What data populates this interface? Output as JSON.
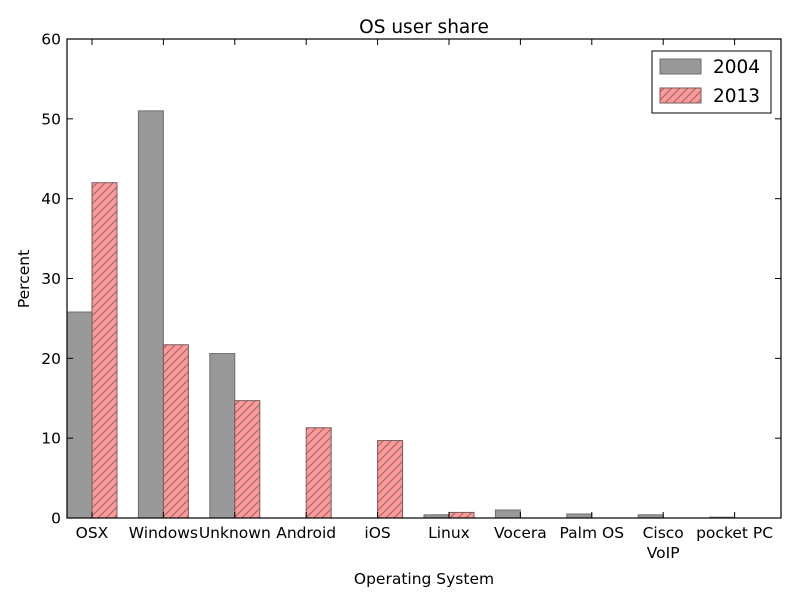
{
  "chart_data": {
    "type": "bar",
    "title": "OS user share",
    "xlabel": "Operating System",
    "ylabel": "Percent",
    "ylim": [
      0,
      60
    ],
    "yticks": [
      "0",
      "10",
      "20",
      "30",
      "40",
      "50",
      "60"
    ],
    "grid": false,
    "legend_position": "top-right",
    "categories": [
      [
        "OSX"
      ],
      [
        "Windows"
      ],
      [
        "Unknown"
      ],
      [
        "Android"
      ],
      [
        "iOS"
      ],
      [
        "Linux"
      ],
      [
        "Vocera"
      ],
      [
        "Palm OS"
      ],
      [
        "Cisco",
        "VoIP"
      ],
      [
        "pocket PC"
      ]
    ],
    "series": [
      {
        "name": "2004",
        "color": "#999999",
        "edge_color": "#6e6e6e",
        "hatch": "none",
        "values": [
          25.8,
          51.0,
          20.6,
          0,
          0,
          0.4,
          1.0,
          0.5,
          0.4,
          0.1
        ]
      },
      {
        "name": "2013",
        "color": "#ff9999",
        "edge_color": "#7a5a5a",
        "hatch": "diagonal",
        "values": [
          42.0,
          21.7,
          14.7,
          11.3,
          9.7,
          0.7,
          0,
          0,
          0,
          0
        ]
      }
    ]
  }
}
